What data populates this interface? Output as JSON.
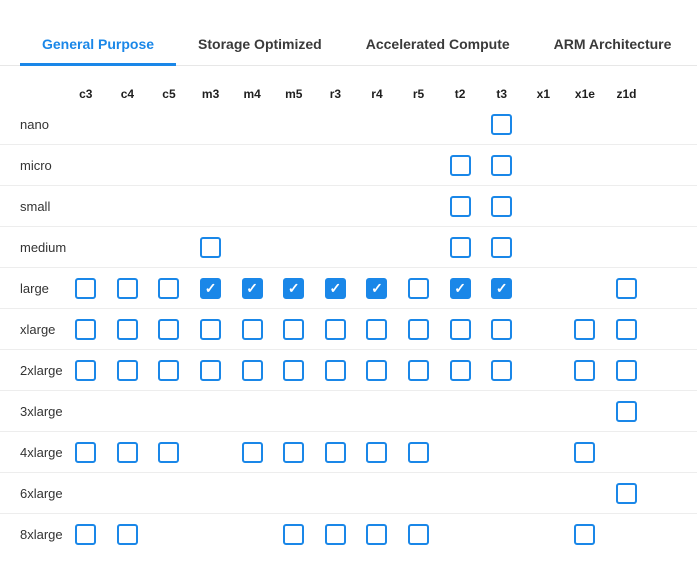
{
  "tabs": [
    {
      "label": "General Purpose",
      "active": true
    },
    {
      "label": "Storage Optimized",
      "active": false
    },
    {
      "label": "Accelerated Compute",
      "active": false
    },
    {
      "label": "ARM Architecture",
      "active": false
    }
  ],
  "table": {
    "columns": [
      "c3",
      "c4",
      "c5",
      "m3",
      "m4",
      "m5",
      "r3",
      "r4",
      "r5",
      "t2",
      "t3",
      "x1",
      "x1e",
      "z1d"
    ],
    "rows": [
      {
        "label": "nano",
        "cells": [
          null,
          null,
          null,
          null,
          null,
          null,
          null,
          null,
          null,
          null,
          "unchecked",
          null,
          null,
          null
        ]
      },
      {
        "label": "micro",
        "cells": [
          null,
          null,
          null,
          null,
          null,
          null,
          null,
          null,
          null,
          "unchecked",
          "unchecked",
          null,
          null,
          null
        ]
      },
      {
        "label": "small",
        "cells": [
          null,
          null,
          null,
          null,
          null,
          null,
          null,
          null,
          null,
          "unchecked",
          "unchecked",
          null,
          null,
          null
        ]
      },
      {
        "label": "medium",
        "cells": [
          null,
          null,
          null,
          "unchecked",
          null,
          null,
          null,
          null,
          null,
          "unchecked",
          "unchecked",
          null,
          null,
          null
        ]
      },
      {
        "label": "large",
        "cells": [
          "unchecked",
          "unchecked",
          "unchecked",
          "checked",
          "checked",
          "checked",
          "checked",
          "checked",
          "unchecked",
          "checked",
          "checked",
          null,
          null,
          "unchecked"
        ]
      },
      {
        "label": "xlarge",
        "cells": [
          "unchecked",
          "unchecked",
          "unchecked",
          "unchecked",
          "unchecked",
          "unchecked",
          "unchecked",
          "unchecked",
          "unchecked",
          "unchecked",
          "unchecked",
          null,
          "unchecked",
          "unchecked"
        ]
      },
      {
        "label": "2xlarge",
        "cells": [
          "unchecked",
          "unchecked",
          "unchecked",
          "unchecked",
          "unchecked",
          "unchecked",
          "unchecked",
          "unchecked",
          "unchecked",
          "unchecked",
          "unchecked",
          null,
          "unchecked",
          "unchecked"
        ]
      },
      {
        "label": "3xlarge",
        "cells": [
          null,
          null,
          null,
          null,
          null,
          null,
          null,
          null,
          null,
          null,
          null,
          null,
          null,
          "unchecked"
        ]
      },
      {
        "label": "4xlarge",
        "cells": [
          "unchecked",
          "unchecked",
          "unchecked",
          null,
          "unchecked",
          "unchecked",
          "unchecked",
          "unchecked",
          "unchecked",
          null,
          null,
          null,
          "unchecked",
          null
        ]
      },
      {
        "label": "6xlarge",
        "cells": [
          null,
          null,
          null,
          null,
          null,
          null,
          null,
          null,
          null,
          null,
          null,
          null,
          null,
          "unchecked"
        ]
      },
      {
        "label": "8xlarge",
        "cells": [
          "unchecked",
          "unchecked",
          null,
          null,
          null,
          "unchecked",
          "unchecked",
          "unchecked",
          "unchecked",
          null,
          null,
          null,
          "unchecked",
          null
        ]
      }
    ]
  },
  "icons": {
    "checkmark": "✓"
  },
  "colors": {
    "accent": "#1a87e8",
    "tab_inactive_text": "#3a3a3a",
    "column_header_text": "#1f1f1f",
    "row_label_text": "#333333",
    "row_divider": "#ededed",
    "tabbar_divider": "#e7e7e7",
    "background": "#ffffff"
  }
}
